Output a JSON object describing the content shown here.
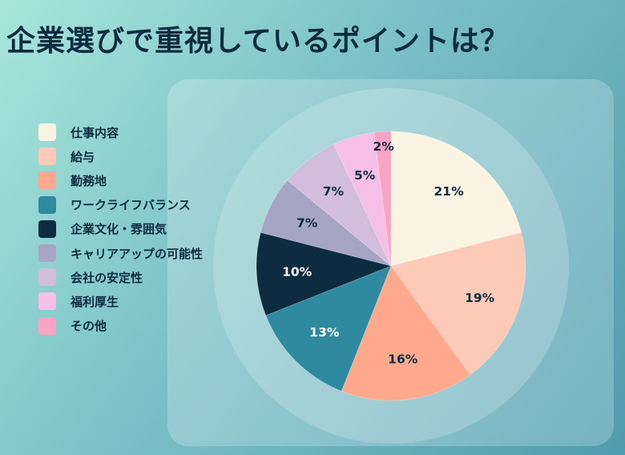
{
  "title": "企業選びで重視しているポイントは？",
  "chart_data": {
    "type": "pie",
    "categories": [
      "仕事内容",
      "給与",
      "勤務地",
      "ワークライフバランス",
      "企業文化・雰囲気",
      "キャリアアップの可能性",
      "会社の安定性",
      "福利厚生",
      "その他"
    ],
    "values": [
      21,
      19,
      16,
      13,
      10,
      7,
      7,
      5,
      2
    ],
    "labels": [
      "21%",
      "19%",
      "16%",
      "13%",
      "10%",
      "7%",
      "7%",
      "5%",
      "2%"
    ],
    "colors": [
      "#fbf4e3",
      "#fdcab8",
      "#fea98e",
      "#2f8aa0",
      "#0e2c40",
      "#a6a6c2",
      "#d3bddd",
      "#f5bfe7",
      "#f9a3c7"
    ],
    "label_colors": [
      "#0d2b3e",
      "#0d2b3e",
      "#0d2b3e",
      "#ffffff",
      "#ffffff",
      "#0d2b3e",
      "#0d2b3e",
      "#0d2b3e",
      "#0d2b3e"
    ],
    "legend_position": "left"
  }
}
